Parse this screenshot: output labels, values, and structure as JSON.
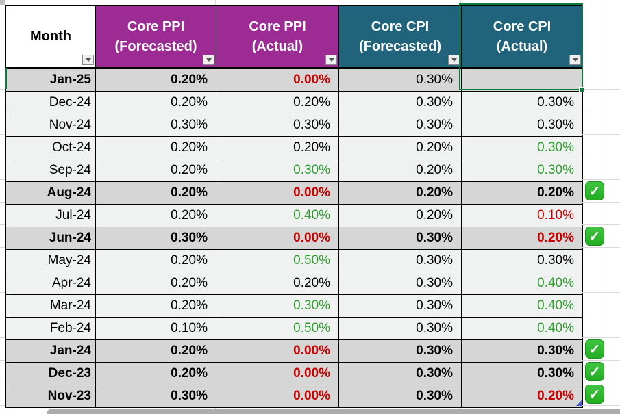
{
  "table": {
    "columns": [
      {
        "label": "Month",
        "sublabel": "",
        "bg": "#FFFFFF",
        "fg": "#000000"
      },
      {
        "label": "Core PPI",
        "sublabel": "(Forecasted)",
        "bg": "#9C2B94",
        "fg": "#FFFFFF"
      },
      {
        "label": "Core PPI",
        "sublabel": "(Actual)",
        "bg": "#9C2B94",
        "fg": "#FFFFFF"
      },
      {
        "label": "Core CPI",
        "sublabel": "(Forecasted)",
        "bg": "#20637B",
        "fg": "#FFFFFF"
      },
      {
        "label": "Core CPI",
        "sublabel": "(Actual)",
        "bg": "#20637B",
        "fg": "#FFFFFF"
      }
    ],
    "rows": [
      {
        "month": "Jan-25",
        "bold_month": true,
        "shaded": true,
        "selected": true,
        "check": false,
        "cells": [
          {
            "text": "0.20%",
            "color": "black",
            "bold": true
          },
          {
            "text": "0.00%",
            "color": "red",
            "bold": true
          },
          {
            "text": "0.30%",
            "color": "black",
            "bold": false
          },
          {
            "text": "",
            "color": "black",
            "bold": false
          }
        ]
      },
      {
        "month": "Dec-24",
        "bold_month": false,
        "shaded": false,
        "selected": false,
        "check": false,
        "cells": [
          {
            "text": "0.20%",
            "color": "black",
            "bold": false
          },
          {
            "text": "0.20%",
            "color": "black",
            "bold": false
          },
          {
            "text": "0.30%",
            "color": "black",
            "bold": false
          },
          {
            "text": "0.30%",
            "color": "black",
            "bold": false
          }
        ]
      },
      {
        "month": "Nov-24",
        "bold_month": false,
        "shaded": false,
        "selected": false,
        "check": false,
        "cells": [
          {
            "text": "0.30%",
            "color": "black",
            "bold": false
          },
          {
            "text": "0.30%",
            "color": "black",
            "bold": false
          },
          {
            "text": "0.30%",
            "color": "black",
            "bold": false
          },
          {
            "text": "0.30%",
            "color": "black",
            "bold": false
          }
        ]
      },
      {
        "month": "Oct-24",
        "bold_month": false,
        "shaded": false,
        "selected": false,
        "check": false,
        "cells": [
          {
            "text": "0.20%",
            "color": "black",
            "bold": false
          },
          {
            "text": "0.20%",
            "color": "black",
            "bold": false
          },
          {
            "text": "0.20%",
            "color": "black",
            "bold": false
          },
          {
            "text": "0.30%",
            "color": "green",
            "bold": false
          }
        ]
      },
      {
        "month": "Sep-24",
        "bold_month": false,
        "shaded": false,
        "selected": false,
        "check": false,
        "cells": [
          {
            "text": "0.20%",
            "color": "black",
            "bold": false
          },
          {
            "text": "0.30%",
            "color": "green",
            "bold": false
          },
          {
            "text": "0.20%",
            "color": "black",
            "bold": false
          },
          {
            "text": "0.30%",
            "color": "green",
            "bold": false
          }
        ]
      },
      {
        "month": "Aug-24",
        "bold_month": true,
        "shaded": true,
        "selected": false,
        "check": true,
        "cells": [
          {
            "text": "0.20%",
            "color": "black",
            "bold": true
          },
          {
            "text": "0.00%",
            "color": "red",
            "bold": true
          },
          {
            "text": "0.20%",
            "color": "black",
            "bold": true
          },
          {
            "text": "0.20%",
            "color": "black",
            "bold": true
          }
        ]
      },
      {
        "month": "Jul-24",
        "bold_month": false,
        "shaded": false,
        "selected": false,
        "check": false,
        "cells": [
          {
            "text": "0.20%",
            "color": "black",
            "bold": false
          },
          {
            "text": "0.40%",
            "color": "green",
            "bold": false
          },
          {
            "text": "0.20%",
            "color": "black",
            "bold": false
          },
          {
            "text": "0.10%",
            "color": "red",
            "bold": false
          }
        ]
      },
      {
        "month": "Jun-24",
        "bold_month": true,
        "shaded": true,
        "selected": false,
        "check": true,
        "cells": [
          {
            "text": "0.30%",
            "color": "black",
            "bold": true
          },
          {
            "text": "0.00%",
            "color": "red",
            "bold": true
          },
          {
            "text": "0.30%",
            "color": "black",
            "bold": true
          },
          {
            "text": "0.20%",
            "color": "red",
            "bold": true
          }
        ]
      },
      {
        "month": "May-24",
        "bold_month": false,
        "shaded": false,
        "selected": false,
        "check": false,
        "cells": [
          {
            "text": "0.20%",
            "color": "black",
            "bold": false
          },
          {
            "text": "0.50%",
            "color": "green",
            "bold": false
          },
          {
            "text": "0.30%",
            "color": "black",
            "bold": false
          },
          {
            "text": "0.30%",
            "color": "black",
            "bold": false
          }
        ]
      },
      {
        "month": "Apr-24",
        "bold_month": false,
        "shaded": false,
        "selected": false,
        "check": false,
        "cells": [
          {
            "text": "0.20%",
            "color": "black",
            "bold": false
          },
          {
            "text": "0.20%",
            "color": "black",
            "bold": false
          },
          {
            "text": "0.30%",
            "color": "black",
            "bold": false
          },
          {
            "text": "0.40%",
            "color": "green",
            "bold": false
          }
        ]
      },
      {
        "month": "Mar-24",
        "bold_month": false,
        "shaded": false,
        "selected": false,
        "check": false,
        "cells": [
          {
            "text": "0.20%",
            "color": "black",
            "bold": false
          },
          {
            "text": "0.30%",
            "color": "green",
            "bold": false
          },
          {
            "text": "0.30%",
            "color": "black",
            "bold": false
          },
          {
            "text": "0.40%",
            "color": "green",
            "bold": false
          }
        ]
      },
      {
        "month": "Feb-24",
        "bold_month": false,
        "shaded": false,
        "selected": false,
        "check": false,
        "cells": [
          {
            "text": "0.10%",
            "color": "black",
            "bold": false
          },
          {
            "text": "0.50%",
            "color": "green",
            "bold": false
          },
          {
            "text": "0.30%",
            "color": "black",
            "bold": false
          },
          {
            "text": "0.40%",
            "color": "green",
            "bold": false
          }
        ]
      },
      {
        "month": "Jan-24",
        "bold_month": true,
        "shaded": true,
        "selected": false,
        "check": true,
        "cells": [
          {
            "text": "0.20%",
            "color": "black",
            "bold": true
          },
          {
            "text": "0.00%",
            "color": "red",
            "bold": true
          },
          {
            "text": "0.30%",
            "color": "black",
            "bold": true
          },
          {
            "text": "0.30%",
            "color": "black",
            "bold": true
          }
        ]
      },
      {
        "month": "Dec-23",
        "bold_month": true,
        "shaded": true,
        "selected": false,
        "check": true,
        "cells": [
          {
            "text": "0.20%",
            "color": "black",
            "bold": true
          },
          {
            "text": "0.00%",
            "color": "red",
            "bold": true
          },
          {
            "text": "0.30%",
            "color": "black",
            "bold": true
          },
          {
            "text": "0.30%",
            "color": "black",
            "bold": true
          }
        ]
      },
      {
        "month": "Nov-23",
        "bold_month": true,
        "shaded": true,
        "selected": false,
        "check": true,
        "cells": [
          {
            "text": "0.30%",
            "color": "black",
            "bold": true
          },
          {
            "text": "0.00%",
            "color": "red",
            "bold": true
          },
          {
            "text": "0.30%",
            "color": "black",
            "bold": true
          },
          {
            "text": "0.20%",
            "color": "red",
            "bold": true
          }
        ]
      }
    ]
  },
  "icons": {
    "filter_icon": "chevron-down",
    "check_icon": "check",
    "check_glyph": "✓"
  },
  "colors": {
    "header_purple": "#9C2B94",
    "header_teal": "#20637B",
    "negative_red": "#C80000",
    "positive_green": "#2F9E2F",
    "shaded_row": "#D6D6D6",
    "normal_row": "#F0F1F1",
    "selection_green": "#107C41",
    "check_green": "#25AC25",
    "table_border": "#000000",
    "gridline": "#D9D9D9",
    "resize_handle_blue": "#4455C4",
    "bottom_bar_gray": "#ACACAC"
  }
}
